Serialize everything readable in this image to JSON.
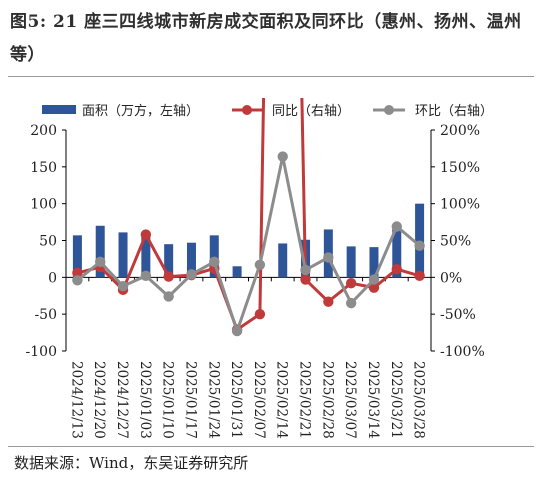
{
  "figure": {
    "title": "图5:  21 座三四线城市新房成交面积及同环比（惠州、扬州、温州等）",
    "source": "数据来源：Wind，东吴证券研究所"
  },
  "chart_data": {
    "type": "bar",
    "categories": [
      "2024/12/13",
      "2024/12/20",
      "2024/12/27",
      "2025/01/03",
      "2025/01/10",
      "2025/01/17",
      "2025/01/24",
      "2025/01/31",
      "2025/02/07",
      "2025/02/14",
      "2025/02/21",
      "2025/02/28",
      "2025/03/07",
      "2025/03/14",
      "2025/03/21",
      "2025/03/28"
    ],
    "series": [
      {
        "name": "面积（万方，左轴）",
        "type": "bar",
        "axis": "left",
        "color": "#2e5597",
        "values": [
          57,
          70,
          61,
          56,
          45,
          47,
          57,
          15,
          0,
          46,
          51,
          65,
          42,
          41,
          66,
          100
        ]
      },
      {
        "name": "同比（右轴）",
        "type": "line",
        "axis": "right",
        "color": "#c0393b",
        "values": [
          6,
          14,
          -17,
          58,
          1,
          3,
          12,
          -71,
          -50,
          null,
          -3,
          -33,
          -8,
          -14,
          11,
          2
        ]
      },
      {
        "name": "环比（右轴）",
        "type": "line",
        "axis": "right",
        "color": "#8c8c8c",
        "values": [
          -4,
          21,
          -12,
          2,
          -26,
          4,
          21,
          -73,
          17,
          164,
          10,
          27,
          -35,
          -3,
          69,
          43
        ]
      }
    ],
    "yoy_spike": {
      "axis": "right",
      "from_index": 8,
      "to_index": 10,
      "off_scale": true
    },
    "left_axis": {
      "ylim": [
        -100,
        200
      ],
      "ticks": [
        "200",
        "150",
        "100",
        "50",
        "0",
        "-50",
        "-100"
      ]
    },
    "right_axis": {
      "ylim": [
        -100,
        200
      ],
      "ticks": [
        "200%",
        "150%",
        "100%",
        "50%",
        "0%",
        "-50%",
        "-100%"
      ]
    },
    "legend": {
      "placement": "top",
      "items": [
        "面积（万方，左轴）",
        "同比（右轴）",
        "环比（右轴）"
      ]
    },
    "grid": false
  }
}
